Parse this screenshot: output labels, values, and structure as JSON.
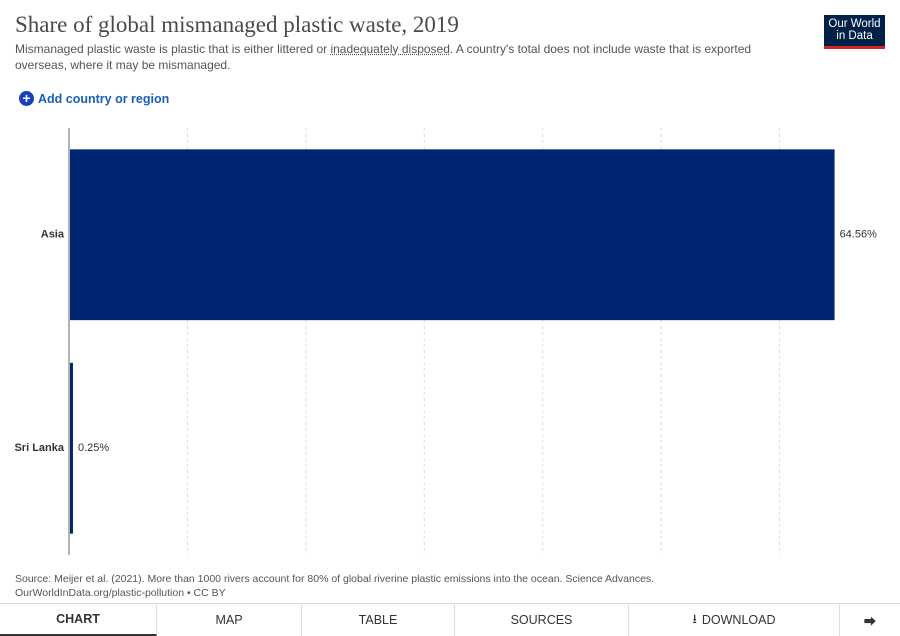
{
  "logo": [
    "Our World",
    "in Data"
  ],
  "chart_data": {
    "type": "bar",
    "orientation": "horizontal",
    "title": "Share of global mismanaged plastic waste, 2019",
    "subtitle": [
      "Mismanaged plastic waste is plastic that is either littered or ",
      "inadequately disposed",
      ". A country's total does not include waste that is exported overseas, where it may be mismanaged."
    ],
    "categories": [
      "Asia",
      "Sri Lanka"
    ],
    "values": [
      64.56,
      0.25
    ],
    "value_labels": [
      "64.56%",
      "0.25%"
    ],
    "color": "#002571",
    "xlim": [
      0,
      70
    ],
    "xticks": [
      0,
      10,
      20,
      30,
      40,
      50,
      60
    ],
    "grid": true,
    "source": "Source: Meijer et al. (2021). More than 1000 rivers account for 80% of global riverine plastic emissions into the ocean. Science Advances.",
    "url_line": "OurWorldInData.org/plastic-pollution • CC BY"
  },
  "controls": {
    "add": "Add country or region"
  },
  "tabs": [
    "CHART",
    "MAP",
    "TABLE",
    "SOURCES",
    "DOWNLOAD"
  ]
}
